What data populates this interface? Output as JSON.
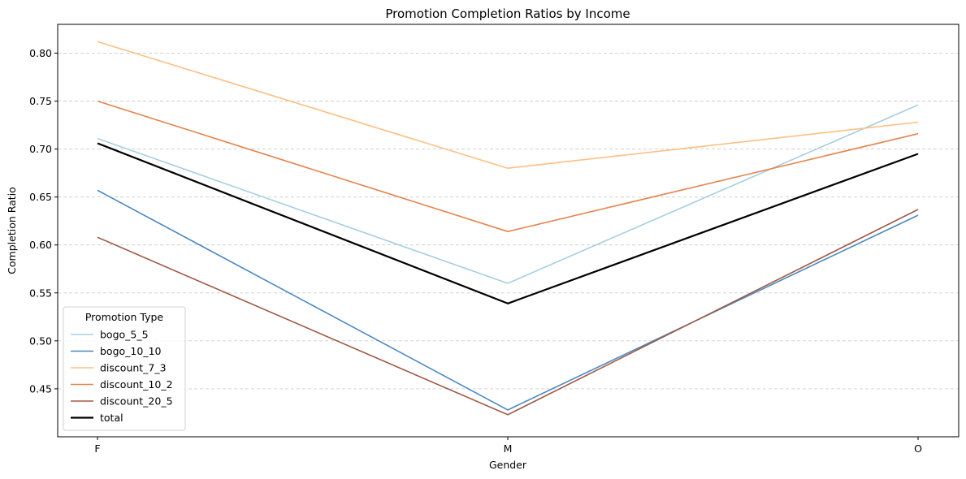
{
  "chart_data": {
    "type": "line",
    "title": "Promotion Completion Ratios by Income",
    "xlabel": "Gender",
    "ylabel": "Completion Ratio",
    "categories": [
      "F",
      "M",
      "O"
    ],
    "ylim": [
      0.4,
      0.83
    ],
    "yticks": [
      "0.45",
      "0.50",
      "0.55",
      "0.60",
      "0.65",
      "0.70",
      "0.75",
      "0.80"
    ],
    "grid": "horizontal dashed",
    "legend": {
      "title": "Promotion Type",
      "placement": "lower-left"
    },
    "series": [
      {
        "name": "bogo_5_5",
        "color": "#a6cee3",
        "values": [
          0.711,
          0.56,
          0.746
        ]
      },
      {
        "name": "bogo_10_10",
        "color": "#4a88c0",
        "values": [
          0.657,
          0.428,
          0.631
        ]
      },
      {
        "name": "discount_7_3",
        "color": "#fdbf82",
        "values": [
          0.812,
          0.68,
          0.728
        ]
      },
      {
        "name": "discount_10_2",
        "color": "#e6844c",
        "values": [
          0.75,
          0.614,
          0.716
        ]
      },
      {
        "name": "discount_20_5",
        "color": "#a05a45",
        "values": [
          0.608,
          0.423,
          0.637
        ]
      },
      {
        "name": "total",
        "color": "#000000",
        "values": [
          0.706,
          0.539,
          0.695
        ],
        "bold": true
      }
    ]
  }
}
